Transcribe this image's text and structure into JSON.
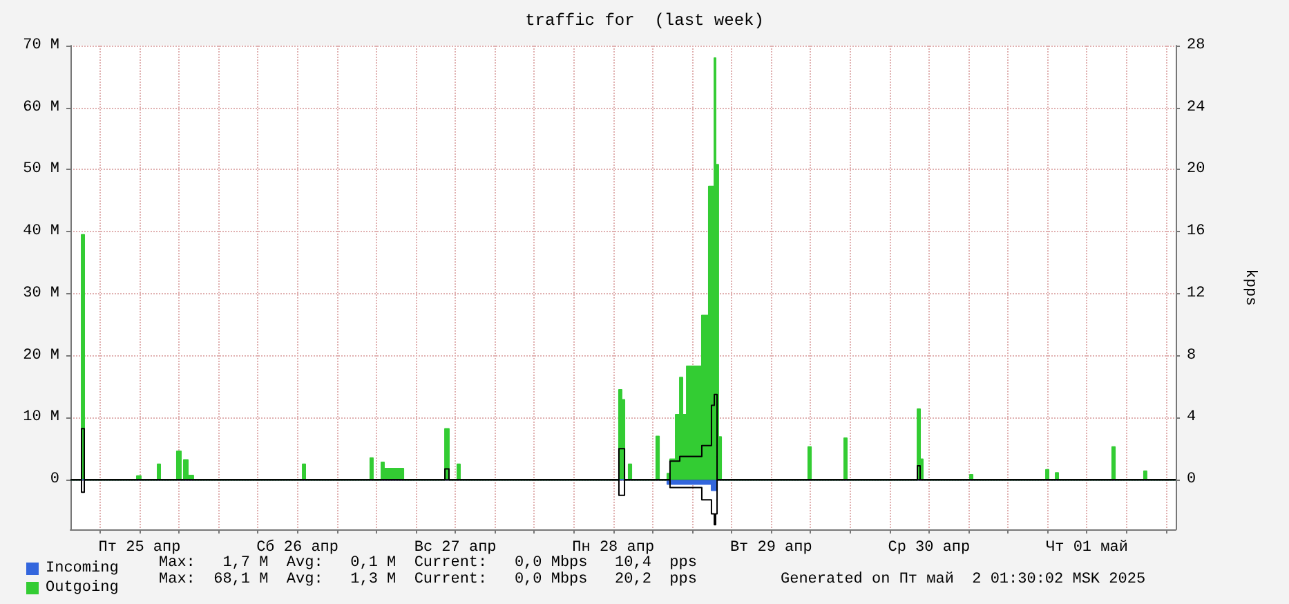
{
  "chart_data": {
    "type": "area",
    "title": "traffic for  (last week)",
    "y2label": "kpps",
    "xlim": [
      "2025-04-25T01:30",
      "2025-05-02T01:30"
    ],
    "xticks": [
      {
        "value": "2025-04-25T06:00",
        "label": null
      },
      {
        "value": "2025-04-25T12:00",
        "label": "Пт 25 апр"
      },
      {
        "value": "2025-04-25T18:00",
        "label": null
      },
      {
        "value": "2025-04-26T00:00",
        "label": null
      },
      {
        "value": "2025-04-26T06:00",
        "label": null
      },
      {
        "value": "2025-04-26T12:00",
        "label": "Сб 26 апр"
      },
      {
        "value": "2025-04-26T18:00",
        "label": null
      },
      {
        "value": "2025-04-27T00:00",
        "label": null
      },
      {
        "value": "2025-04-27T06:00",
        "label": null
      },
      {
        "value": "2025-04-27T12:00",
        "label": "Вс 27 апр"
      },
      {
        "value": "2025-04-27T18:00",
        "label": null
      },
      {
        "value": "2025-04-28T00:00",
        "label": null
      },
      {
        "value": "2025-04-28T06:00",
        "label": null
      },
      {
        "value": "2025-04-28T12:00",
        "label": "Пн 28 апр"
      },
      {
        "value": "2025-04-28T18:00",
        "label": null
      },
      {
        "value": "2025-04-29T00:00",
        "label": null
      },
      {
        "value": "2025-04-29T06:00",
        "label": null
      },
      {
        "value": "2025-04-29T12:00",
        "label": "Вт 29 апр"
      },
      {
        "value": "2025-04-29T18:00",
        "label": null
      },
      {
        "value": "2025-04-30T00:00",
        "label": null
      },
      {
        "value": "2025-04-30T06:00",
        "label": null
      },
      {
        "value": "2025-04-30T12:00",
        "label": "Ср 30 апр"
      },
      {
        "value": "2025-04-30T18:00",
        "label": null
      },
      {
        "value": "2025-05-01T00:00",
        "label": null
      },
      {
        "value": "2025-05-01T06:00",
        "label": null
      },
      {
        "value": "2025-05-01T12:00",
        "label": "Чт 01 май"
      },
      {
        "value": "2025-05-01T18:00",
        "label": null
      },
      {
        "value": "2025-05-02T00:00",
        "label": null
      }
    ],
    "ylim": [
      -8,
      70
    ],
    "yticks": [
      0,
      {
        "value": 10,
        "label": "10 M"
      },
      {
        "value": 20,
        "label": "20 M"
      },
      {
        "value": 30,
        "label": "30 M"
      },
      {
        "value": 40,
        "label": "40 M"
      },
      {
        "value": 50,
        "label": "50 M"
      },
      {
        "value": 60,
        "label": "60 M"
      },
      {
        "value": 70,
        "label": "70 M"
      }
    ],
    "y2lim": [
      -3.2,
      28
    ],
    "y2ticks": [
      0,
      4,
      8,
      12,
      16,
      20,
      24,
      28
    ],
    "grid": true,
    "legend": "bottom left",
    "annotations": [
      "Max:   1,7 M  Avg:   0,1 M  Current:   0,0 Mbps   10,4  pps",
      "Max:  68,1 M  Avg:   1,3 M  Current:   0,0 Mbps   20,2  pps",
      "Generated on Пт май  2 01:30:02 MSK 2025"
    ],
    "series": [
      {
        "name": "Incoming",
        "color": "#3366dd",
        "x": [
          "2025-04-25T01:30",
          "2025-04-28T20:13",
          "2025-04-28T20:13",
          "2025-04-29T02:56",
          "2025-04-29T02:56",
          "2025-04-29T03:47",
          "2025-04-29T03:47",
          "2025-05-02T01:30"
        ],
        "values": [
          0,
          0,
          -0.7,
          -0.7,
          -1.7,
          -1.7,
          0,
          0
        ]
      },
      {
        "name": "Outgoing",
        "color": "#33cc33",
        "x": [
          "2025-04-25T01:30",
          "2025-04-25T03:11",
          "2025-04-25T03:11",
          "2025-04-25T03:36",
          "2025-04-25T03:36",
          "2025-04-25T11:35",
          "2025-04-25T11:35",
          "2025-04-25T12:12",
          "2025-04-25T12:12",
          "2025-04-25T14:44",
          "2025-04-25T14:44",
          "2025-04-25T15:09",
          "2025-04-25T15:09",
          "2025-04-25T17:40",
          "2025-04-25T17:40",
          "2025-04-25T18:18",
          "2025-04-25T18:18",
          "2025-04-25T18:43",
          "2025-04-25T18:43",
          "2025-04-25T19:21",
          "2025-04-25T19:21",
          "2025-04-25T20:11",
          "2025-04-25T20:11",
          "2025-04-26T12:47",
          "2025-04-26T12:47",
          "2025-04-26T13:12",
          "2025-04-26T13:12",
          "2025-04-26T23:04",
          "2025-04-26T23:04",
          "2025-04-26T23:29",
          "2025-04-26T23:29",
          "2025-04-27T00:45",
          "2025-04-27T00:45",
          "2025-04-27T01:10",
          "2025-04-27T01:10",
          "2025-04-27T04:07",
          "2025-04-27T04:07",
          "2025-04-27T10:25",
          "2025-04-27T10:25",
          "2025-04-27T11:02",
          "2025-04-27T11:02",
          "2025-04-27T12:18",
          "2025-04-27T12:18",
          "2025-04-27T12:43",
          "2025-04-27T12:43",
          "2025-04-28T12:52",
          "2025-04-28T12:52",
          "2025-04-28T13:17",
          "2025-04-28T13:17",
          "2025-04-28T13:43",
          "2025-04-28T13:43",
          "2025-04-28T14:20",
          "2025-04-28T14:20",
          "2025-04-28T14:46",
          "2025-04-28T14:46",
          "2025-04-28T18:32",
          "2025-04-28T18:32",
          "2025-04-28T18:58",
          "2025-04-28T18:58",
          "2025-04-28T20:13",
          "2025-04-28T20:13",
          "2025-04-28T20:38",
          "2025-04-28T20:38",
          "2025-04-28T21:29",
          "2025-04-28T21:29",
          "2025-04-28T22:07",
          "2025-04-28T22:07",
          "2025-04-28T22:32",
          "2025-04-28T22:32",
          "2025-04-28T23:10",
          "2025-04-28T23:10",
          "2025-04-29T01:28",
          "2025-04-29T01:28",
          "2025-04-29T02:31",
          "2025-04-29T02:31",
          "2025-04-29T03:22",
          "2025-04-29T03:22",
          "2025-04-29T03:34",
          "2025-04-29T03:34",
          "2025-04-29T03:59",
          "2025-04-29T03:59",
          "2025-04-29T04:25",
          "2025-04-29T04:25",
          "2025-04-29T17:38",
          "2025-04-29T17:38",
          "2025-04-29T18:04",
          "2025-04-29T18:04",
          "2025-04-29T23:06",
          "2025-04-29T23:06",
          "2025-04-29T23:31",
          "2025-04-29T23:31",
          "2025-04-30T10:14",
          "2025-04-30T10:14",
          "2025-04-30T10:39",
          "2025-04-30T10:39",
          "2025-04-30T11:04",
          "2025-04-30T11:04",
          "2025-04-30T18:13",
          "2025-04-30T18:13",
          "2025-04-30T18:38",
          "2025-04-30T18:38",
          "2025-05-01T05:46",
          "2025-05-01T05:46",
          "2025-05-01T06:11",
          "2025-05-01T06:11",
          "2025-05-01T07:14",
          "2025-05-01T07:14",
          "2025-05-01T07:39",
          "2025-05-01T07:39",
          "2025-05-01T15:50",
          "2025-05-01T15:50",
          "2025-05-01T16:16",
          "2025-05-01T16:16",
          "2025-05-01T20:40",
          "2025-05-01T20:40",
          "2025-05-01T21:05",
          "2025-05-01T21:05",
          "2025-05-02T01:30"
        ],
        "values": [
          0,
          0,
          39.5,
          39.5,
          0,
          0,
          0.6,
          0.6,
          0,
          0,
          2.5,
          2.5,
          0,
          0,
          4.6,
          4.6,
          0,
          0,
          3.2,
          3.2,
          0.7,
          0.7,
          0,
          0,
          2.5,
          2.5,
          0,
          0,
          3.5,
          3.5,
          0,
          0,
          2.8,
          2.8,
          1.8,
          1.8,
          0,
          0,
          8.2,
          8.2,
          0,
          0,
          2.5,
          2.5,
          0,
          0,
          14.5,
          14.5,
          12.9,
          12.9,
          0,
          0,
          2.5,
          2.5,
          0,
          0,
          7,
          7,
          0,
          0,
          1,
          1,
          3.3,
          3.3,
          10.5,
          10.5,
          16.5,
          16.5,
          10.5,
          10.5,
          18.3,
          18.3,
          26.5,
          26.5,
          47.3,
          47.3,
          68,
          68,
          50.8,
          50.8,
          6.9,
          6.9,
          0,
          0,
          5.3,
          5.3,
          0,
          0,
          6.7,
          6.7,
          0,
          0,
          11.4,
          11.4,
          3.3,
          3.3,
          0,
          0,
          0.8,
          0.8,
          0,
          0,
          1.6,
          1.6,
          0,
          0,
          1.1,
          1.1,
          0,
          0,
          5.3,
          5.3,
          0,
          0,
          1.4,
          1.4,
          0,
          0
        ]
      },
      {
        "type": "line",
        "axis": "y2",
        "color": "#000000",
        "x": [
          "2025-04-25T01:30",
          "2025-04-25T03:11",
          "2025-04-25T03:11",
          "2025-04-25T03:36",
          "2025-04-25T03:36",
          "2025-04-27T10:25",
          "2025-04-27T10:25",
          "2025-04-27T11:02",
          "2025-04-27T11:02",
          "2025-04-28T12:52",
          "2025-04-28T12:52",
          "2025-04-28T13:43",
          "2025-04-28T13:43",
          "2025-04-28T20:38",
          "2025-04-28T20:38",
          "2025-04-28T22:07",
          "2025-04-28T22:07",
          "2025-04-29T01:28",
          "2025-04-29T01:28",
          "2025-04-29T02:56",
          "2025-04-29T02:56",
          "2025-04-29T03:22",
          "2025-04-29T03:22",
          "2025-04-29T03:47",
          "2025-04-29T03:47",
          "2025-04-30T10:14",
          "2025-04-30T10:14",
          "2025-04-30T10:39",
          "2025-04-30T10:39",
          "2025-05-02T01:30"
        ],
        "values": [
          0,
          0,
          3.3,
          3.3,
          0,
          0,
          0.7,
          0.7,
          0,
          0,
          2,
          2,
          0,
          0,
          1.2,
          1.2,
          1.5,
          1.5,
          2.2,
          2.2,
          4.8,
          4.8,
          5.5,
          5.5,
          0,
          0,
          0.9,
          0.9,
          0,
          0
        ]
      },
      {
        "type": "line",
        "axis": "y2",
        "color": "#000000",
        "x": [
          "2025-04-25T01:30",
          "2025-04-25T03:11",
          "2025-04-25T03:11",
          "2025-04-25T03:36",
          "2025-04-25T03:36",
          "2025-04-28T12:52",
          "2025-04-28T12:52",
          "2025-04-28T13:43",
          "2025-04-28T13:43",
          "2025-04-28T20:38",
          "2025-04-28T20:38",
          "2025-04-29T01:28",
          "2025-04-29T01:28",
          "2025-04-29T02:56",
          "2025-04-29T02:56",
          "2025-04-29T03:22",
          "2025-04-29T03:22",
          "2025-04-29T03:34",
          "2025-04-29T03:34",
          "2025-04-29T03:47",
          "2025-04-29T03:47",
          "2025-05-02T01:30"
        ],
        "values": [
          0,
          0,
          -0.8,
          -0.8,
          0,
          0,
          -1,
          -1,
          0,
          0,
          -0.5,
          -0.5,
          -1.3,
          -1.3,
          -2.2,
          -2.2,
          -2.9,
          -2.9,
          -2.2,
          -2.2,
          0,
          0
        ]
      }
    ]
  }
}
